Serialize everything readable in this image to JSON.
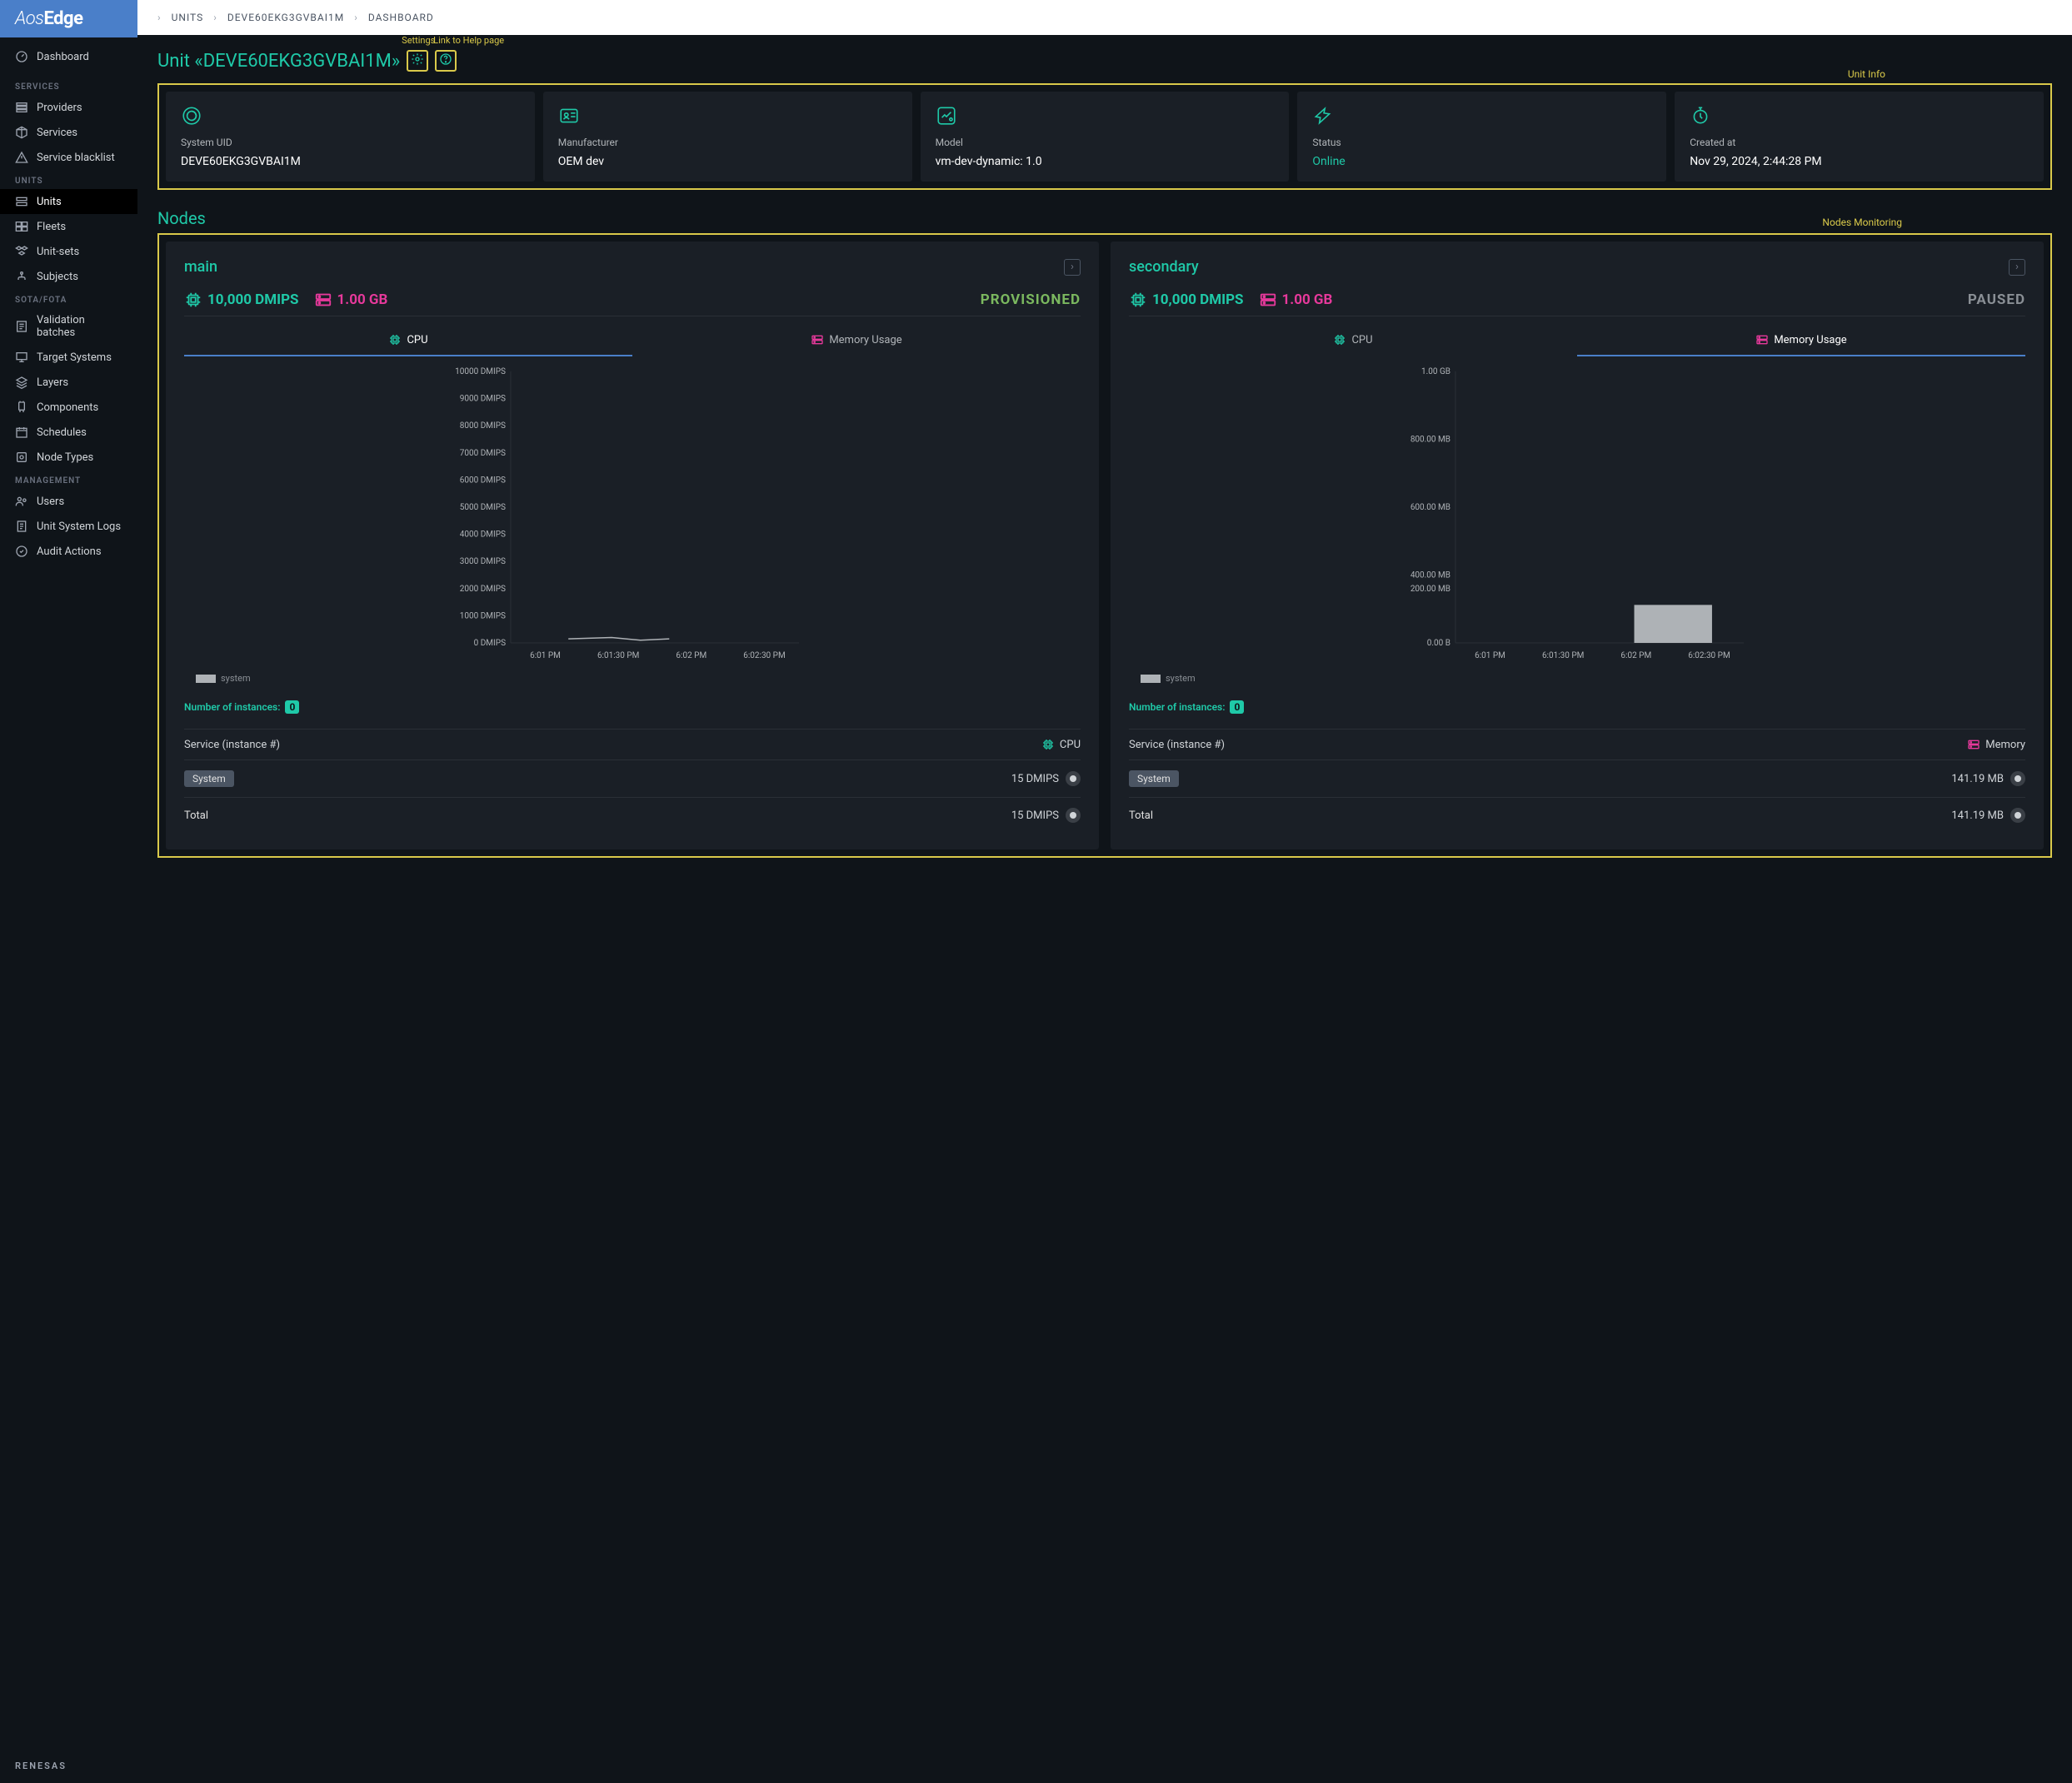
{
  "logo": {
    "pre": "Aos",
    "post": "Edge"
  },
  "breadcrumb": [
    "UNITS",
    "DEVE60EKG3GVBAI1M",
    "DASHBOARD"
  ],
  "sidebar": {
    "top": [
      {
        "label": "Dashboard"
      }
    ],
    "sections": [
      {
        "header": "SERVICES",
        "items": [
          "Providers",
          "Services",
          "Service blacklist"
        ]
      },
      {
        "header": "UNITS",
        "items": [
          "Units",
          "Fleets",
          "Unit-sets",
          "Subjects"
        ],
        "active_index": 0
      },
      {
        "header": "SOTA/FOTA",
        "items": [
          "Validation batches",
          "Target Systems",
          "Layers",
          "Components",
          "Schedules",
          "Node Types"
        ]
      },
      {
        "header": "MANAGEMENT",
        "items": [
          "Users",
          "Unit System Logs",
          "Audit Actions"
        ]
      }
    ],
    "footer": "RENESAS"
  },
  "page_title": "Unit «DEVE60EKG3GVBAI1M»",
  "annotations": {
    "settings": "Settings",
    "help": "Link to Help page",
    "unit_info": "Unit Info",
    "nodes_mon": "Nodes Monitoring"
  },
  "info_cards": [
    {
      "label": "System UID",
      "value": "DEVE60EKG3GVBAI1M"
    },
    {
      "label": "Manufacturer",
      "value": "OEM dev"
    },
    {
      "label": "Model",
      "value": "vm-dev-dynamic: 1.0"
    },
    {
      "label": "Status",
      "value": "Online",
      "online": true
    },
    {
      "label": "Created at",
      "value": "Nov 29, 2024, 2:44:28 PM"
    }
  ],
  "nodes_title": "Nodes",
  "nodes": [
    {
      "name": "main",
      "cpu": "10,000 DMIPS",
      "mem": "1.00 GB",
      "status": "PROVISIONED",
      "status_class": "prov",
      "tabs": [
        "CPU",
        "Memory Usage"
      ],
      "active_tab": 0,
      "chart": {
        "type": "line",
        "y_labels": [
          "10000 DMIPS",
          "9000 DMIPS",
          "8000 DMIPS",
          "7000 DMIPS",
          "6000 DMIPS",
          "5000 DMIPS",
          "4000 DMIPS",
          "3000 DMIPS",
          "2000 DMIPS",
          "1000 DMIPS",
          "0 DMIPS"
        ],
        "x_labels": [
          "6:01 PM",
          "6:01:30 PM",
          "6:02 PM",
          "6:02:30 PM"
        ],
        "series_color": "#aeb2b6",
        "legend": "system",
        "data_points": [
          [
            0.2,
            0.015
          ],
          [
            0.35,
            0.02
          ],
          [
            0.45,
            0.01
          ],
          [
            0.55,
            0.015
          ]
        ],
        "grid_color": "#2a2f36"
      },
      "instances_label": "Number of instances:",
      "instances_count": "0",
      "svc_header": {
        "left": "Service (instance #)",
        "right": "CPU",
        "icon_color": "#1fc9a8"
      },
      "svc_rows": [
        {
          "label": "System",
          "pill": true,
          "value": "15 DMIPS"
        },
        {
          "label": "Total",
          "pill": false,
          "value": "15 DMIPS"
        }
      ]
    },
    {
      "name": "secondary",
      "cpu": "10,000 DMIPS",
      "mem": "1.00 GB",
      "status": "PAUSED",
      "status_class": "paused",
      "tabs": [
        "CPU",
        "Memory Usage"
      ],
      "active_tab": 1,
      "chart": {
        "type": "bar",
        "y_labels": [
          "1.00 GB",
          "800.00 MB",
          "600.00 MB",
          "400.00 MB",
          "0.00 B"
        ],
        "y_extra_label": "200.00 MB",
        "x_labels": [
          "6:01 PM",
          "6:01:30 PM",
          "6:02 PM",
          "6:02:30 PM"
        ],
        "bar_color": "#aeb2b6",
        "legend": "system",
        "bar": {
          "x": 0.62,
          "width": 0.27,
          "height": 0.14
        },
        "grid_color": "#2a2f36"
      },
      "instances_label": "Number of instances:",
      "instances_count": "0",
      "svc_header": {
        "left": "Service (instance #)",
        "right": "Memory",
        "icon_color": "#e6399b"
      },
      "svc_rows": [
        {
          "label": "System",
          "pill": true,
          "value": "141.19 MB"
        },
        {
          "label": "Total",
          "pill": false,
          "value": "141.19 MB"
        }
      ]
    }
  ],
  "colors": {
    "accent_teal": "#1fc9a8",
    "accent_pink": "#e6399b",
    "accent_blue": "#4a7fc9",
    "annotation_yellow": "#d9c94a",
    "bg_dark": "#0f1419",
    "bg_card": "#1a1f26",
    "status_green": "#7bb85f",
    "status_grey": "#8a8f95"
  }
}
